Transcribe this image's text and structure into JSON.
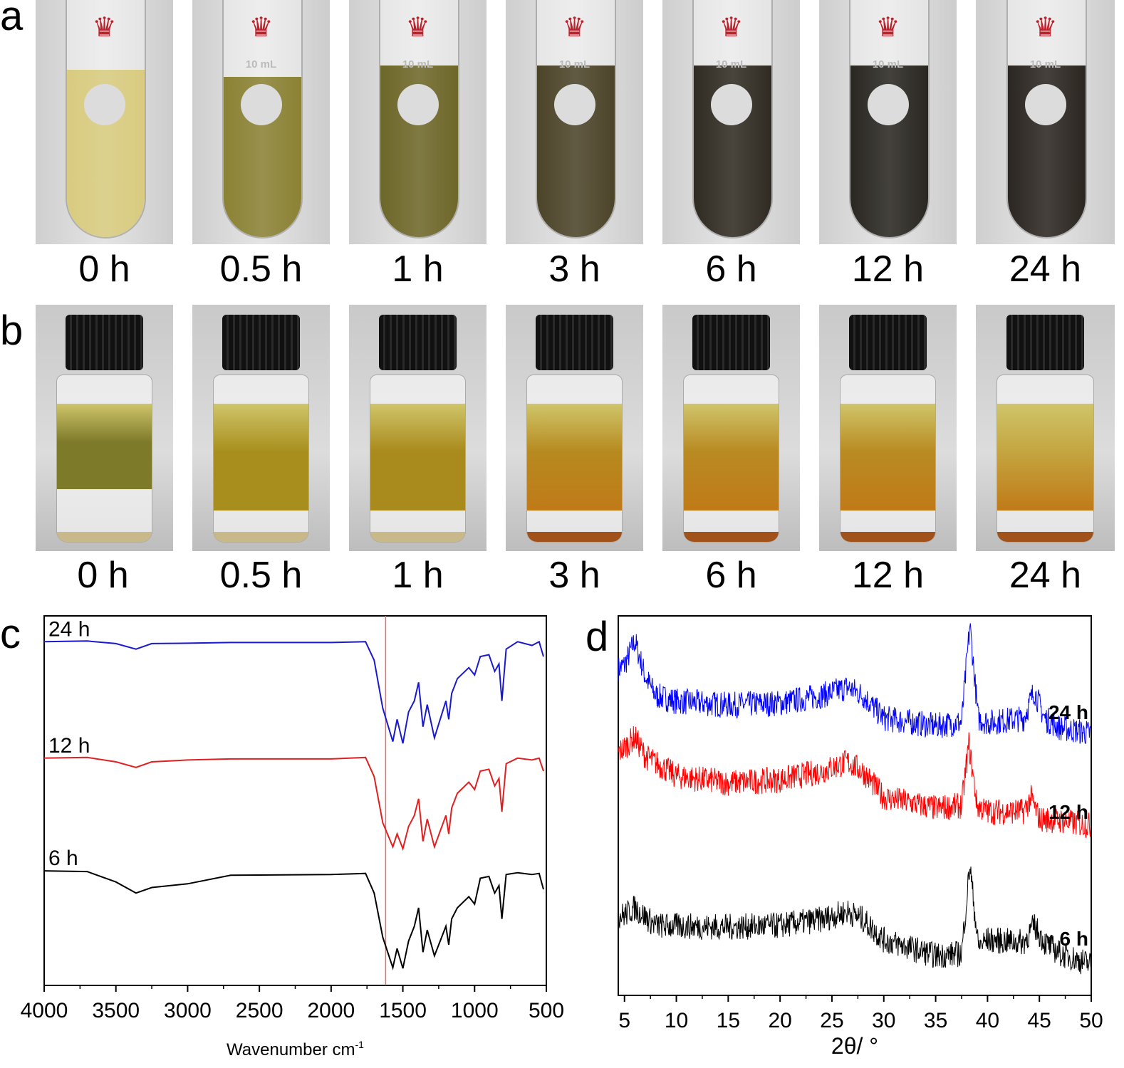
{
  "panels": {
    "a": "a",
    "b": "b",
    "c": "c",
    "d": "d"
  },
  "times": [
    "0 h",
    "0.5 h",
    "1 h",
    "3 h",
    "6 h",
    "12 h",
    "24 h"
  ],
  "tube_colors": [
    "#d9cc80",
    "#8b8234",
    "#6e6729",
    "#4c4429",
    "#302b22",
    "#2a2722",
    "#2b2621"
  ],
  "vial_colors": [
    "#7d7a2a",
    "#a88f1d",
    "#a98a1c",
    "#b78a20",
    "#b98a22",
    "#b98b22",
    "#c4a540"
  ],
  "tube_mark": "10 mL",
  "chart_data": [
    {
      "type": "line",
      "panel": "c",
      "title": "",
      "xlabel": "Wavenumber cm",
      "xlabel_sup": "-1",
      "ylabel": "",
      "xlim": [
        4000,
        500
      ],
      "ylim": [
        0,
        100
      ],
      "xticks": [
        4000,
        3500,
        3000,
        2500,
        2000,
        1500,
        1000,
        500
      ],
      "reference_line": 1620,
      "reference_color": "#e07070",
      "x": [
        4000,
        3700,
        3500,
        3360,
        3250,
        3000,
        2700,
        2000,
        1760,
        1700,
        1640,
        1570,
        1540,
        1500,
        1460,
        1420,
        1390,
        1360,
        1330,
        1280,
        1200,
        1180,
        1160,
        1120,
        1040,
        1000,
        960,
        900,
        860,
        830,
        810,
        780,
        700,
        600,
        550,
        520
      ],
      "series": [
        {
          "name": "24 h",
          "color": "#1a1acc",
          "values": [
            93,
            93.2,
            92.5,
            91,
            92.5,
            92.6,
            92.8,
            92.8,
            93,
            88,
            75,
            66,
            72,
            65.5,
            74,
            77,
            82,
            70,
            76,
            67,
            77,
            72,
            79,
            83,
            86,
            84,
            89,
            89.5,
            85,
            87,
            77,
            91,
            93,
            92,
            93,
            89
          ]
        },
        {
          "name": "12 h",
          "color": "#e02020",
          "values": [
            61.5,
            61.7,
            60.5,
            59,
            60.5,
            61,
            61.3,
            61.3,
            61.7,
            56.5,
            44,
            37.5,
            41,
            37,
            43,
            46,
            50.5,
            39,
            45,
            37.5,
            46,
            41,
            48,
            52,
            55,
            53,
            58,
            58.5,
            54,
            56,
            47,
            60,
            61.5,
            61,
            61.5,
            58
          ]
        },
        {
          "name": "6 h",
          "color": "#000000",
          "values": [
            31,
            30.8,
            28,
            25,
            26.5,
            27.5,
            29.8,
            30,
            30.3,
            25,
            13,
            4.8,
            10,
            4.6,
            12,
            16,
            21,
            9,
            15,
            8,
            16,
            11,
            18,
            21,
            24,
            22,
            29,
            29.5,
            25,
            27,
            18,
            30,
            30.5,
            30,
            30.3,
            26
          ]
        }
      ]
    },
    {
      "type": "line",
      "panel": "d",
      "title": "",
      "xlabel": "2θ/ °",
      "ylabel": "",
      "xlim": [
        4.4,
        50
      ],
      "ylim": [
        0,
        100
      ],
      "xticks": [
        5,
        10,
        15,
        20,
        25,
        30,
        35,
        40,
        45,
        50
      ],
      "noise": 3.5,
      "series": [
        {
          "name": "24 h",
          "color": "#0000ff",
          "x": [
            4.4,
            5,
            6,
            7,
            8,
            10,
            15,
            20,
            24,
            26.5,
            28,
            30,
            35,
            37.5,
            38.3,
            39.1,
            40,
            43.5,
            44.5,
            45.5,
            47,
            50
          ],
          "values": [
            86,
            87,
            93.4,
            84,
            79,
            77.5,
            76.5,
            77,
            79,
            81.2,
            79,
            73,
            71,
            72,
            97.6,
            73,
            71.9,
            73,
            80.3,
            73,
            70.5,
            69
          ]
        },
        {
          "name": "12 h",
          "color": "#ff0000",
          "x": [
            4.4,
            5,
            6,
            7,
            10,
            15,
            20,
            24,
            26.5,
            28,
            30,
            35,
            37.5,
            38.2,
            39,
            40,
            43.5,
            44.2,
            45,
            47,
            50
          ],
          "values": [
            64,
            65.3,
            68.1,
            63,
            57.8,
            56,
            56.8,
            59,
            61.5,
            59,
            52.2,
            49.3,
            50,
            66.2,
            50,
            48.4,
            48.5,
            52,
            46.5,
            46,
            44.7
          ]
        },
        {
          "name": "6 h",
          "color": "#000000",
          "x": [
            4.4,
            5,
            6,
            8,
            15,
            20,
            24,
            26.5,
            28,
            30,
            35,
            37.5,
            38.3,
            39.1,
            40,
            43.5,
            44.5,
            45.5,
            47,
            50
          ],
          "values": [
            21,
            21.2,
            23.1,
            18.4,
            18,
            18.4,
            20,
            22.1,
            20,
            14.6,
            10.5,
            11,
            34.3,
            13,
            14.6,
            14,
            18.4,
            14,
            11,
            8.1
          ]
        }
      ]
    }
  ]
}
